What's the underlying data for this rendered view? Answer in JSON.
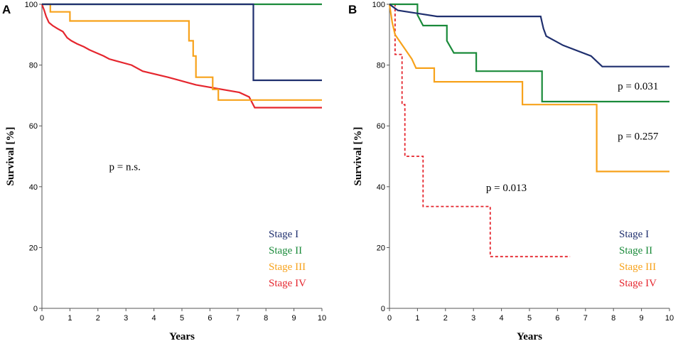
{
  "chart_data": [
    {
      "type": "line",
      "panel_label": "A",
      "xlabel": "Years",
      "ylabel": "Survival [%]",
      "xlim": [
        0,
        10
      ],
      "ylim": [
        0,
        100
      ],
      "x_ticks": [
        "0",
        "1",
        "2",
        "3",
        "4",
        "5",
        "6",
        "7",
        "8",
        "9",
        "10"
      ],
      "y_ticks": [
        "0",
        "20",
        "40",
        "60",
        "80",
        "100"
      ],
      "annotations": [
        {
          "text": "p = n.s.",
          "x": 2.4,
          "y": 45.5
        }
      ],
      "legend_position": "bottom-right",
      "series": [
        {
          "name": "Stage I",
          "color": "#1f2f6e",
          "dashed": false,
          "points": [
            [
              0,
              100
            ],
            [
              7.55,
              100
            ],
            [
              7.55,
              75
            ],
            [
              10,
              75
            ]
          ]
        },
        {
          "name": "Stage II",
          "color": "#1a8a3a",
          "dashed": false,
          "points": [
            [
              0,
              100
            ],
            [
              10,
              100
            ]
          ]
        },
        {
          "name": "Stage III",
          "color": "#f7a21b",
          "dashed": false,
          "points": [
            [
              0,
              100
            ],
            [
              0.3,
              100
            ],
            [
              0.3,
              97.5
            ],
            [
              1.0,
              97.5
            ],
            [
              1.0,
              94.5
            ],
            [
              5.25,
              94.5
            ],
            [
              5.25,
              88
            ],
            [
              5.4,
              88
            ],
            [
              5.4,
              83
            ],
            [
              5.5,
              83
            ],
            [
              5.5,
              76
            ],
            [
              6.1,
              76
            ],
            [
              6.1,
              72
            ],
            [
              6.3,
              72
            ],
            [
              6.3,
              68.5
            ],
            [
              10,
              68.5
            ]
          ]
        },
        {
          "name": "Stage IV",
          "color": "#e5262e",
          "dashed": false,
          "points": [
            [
              0,
              100
            ],
            [
              0.08,
              98
            ],
            [
              0.15,
              96
            ],
            [
              0.25,
              94
            ],
            [
              0.38,
              93
            ],
            [
              0.55,
              92
            ],
            [
              0.75,
              91
            ],
            [
              0.9,
              89
            ],
            [
              1.05,
              88
            ],
            [
              1.25,
              87
            ],
            [
              1.5,
              86
            ],
            [
              1.7,
              85
            ],
            [
              1.95,
              84
            ],
            [
              2.2,
              83
            ],
            [
              2.4,
              82
            ],
            [
              2.6,
              81.5
            ],
            [
              3.2,
              80
            ],
            [
              3.6,
              78
            ],
            [
              4.5,
              76
            ],
            [
              5.5,
              73.5
            ],
            [
              7.05,
              71
            ],
            [
              7.4,
              69.5
            ],
            [
              7.6,
              66
            ],
            [
              10,
              66
            ]
          ]
        }
      ]
    },
    {
      "type": "line",
      "panel_label": "B",
      "xlabel": "Years",
      "ylabel": "Survival [%]",
      "xlim": [
        0,
        10
      ],
      "ylim": [
        0,
        100
      ],
      "x_ticks": [
        "0",
        "1",
        "2",
        "3",
        "4",
        "5",
        "6",
        "7",
        "8",
        "9",
        "10"
      ],
      "y_ticks": [
        "0",
        "20",
        "40",
        "60",
        "80",
        "100"
      ],
      "annotations": [
        {
          "text": "p = 0.031",
          "x": 8.15,
          "y": 72
        },
        {
          "text": "p = 0.257",
          "x": 8.15,
          "y": 55.5
        },
        {
          "text": "p = 0.013",
          "x": 3.45,
          "y": 38.5
        }
      ],
      "legend_position": "bottom-right",
      "series": [
        {
          "name": "Stage I",
          "color": "#1f2f6e",
          "dashed": false,
          "points": [
            [
              0,
              100
            ],
            [
              0.15,
              99
            ],
            [
              0.3,
              98
            ],
            [
              1.0,
              97
            ],
            [
              1.7,
              96
            ],
            [
              5.4,
              96
            ],
            [
              5.45,
              94
            ],
            [
              5.5,
              92
            ],
            [
              5.6,
              89.5
            ],
            [
              6.2,
              86.5
            ],
            [
              7.2,
              83
            ],
            [
              7.6,
              79.5
            ],
            [
              10,
              79.5
            ]
          ]
        },
        {
          "name": "Stage II",
          "color": "#1a8a3a",
          "dashed": false,
          "points": [
            [
              0,
              100
            ],
            [
              1.0,
              100
            ],
            [
              1.0,
              96.5
            ],
            [
              1.2,
              93
            ],
            [
              2.05,
              93
            ],
            [
              2.05,
              88
            ],
            [
              2.3,
              84
            ],
            [
              3.1,
              84
            ],
            [
              3.1,
              78
            ],
            [
              5.45,
              78
            ],
            [
              5.45,
              68
            ],
            [
              10,
              68
            ]
          ]
        },
        {
          "name": "Stage III",
          "color": "#f7a21b",
          "dashed": false,
          "points": [
            [
              0,
              100
            ],
            [
              0.1,
              94
            ],
            [
              0.2,
              90
            ],
            [
              0.5,
              86
            ],
            [
              0.8,
              82
            ],
            [
              0.95,
              79
            ],
            [
              1.6,
              79
            ],
            [
              1.6,
              74.5
            ],
            [
              4.75,
              74.5
            ],
            [
              4.75,
              67
            ],
            [
              7.4,
              67
            ],
            [
              7.4,
              45
            ],
            [
              10,
              45
            ]
          ]
        },
        {
          "name": "Stage IV",
          "color": "#e5262e",
          "dashed": true,
          "points": [
            [
              0,
              100
            ],
            [
              0.2,
              100
            ],
            [
              0.2,
              83.5
            ],
            [
              0.45,
              83.5
            ],
            [
              0.45,
              67
            ],
            [
              0.55,
              67
            ],
            [
              0.55,
              50
            ],
            [
              1.2,
              50
            ],
            [
              1.2,
              33.5
            ],
            [
              3.6,
              33.5
            ],
            [
              3.6,
              17
            ],
            [
              6.45,
              17
            ]
          ]
        }
      ]
    }
  ]
}
